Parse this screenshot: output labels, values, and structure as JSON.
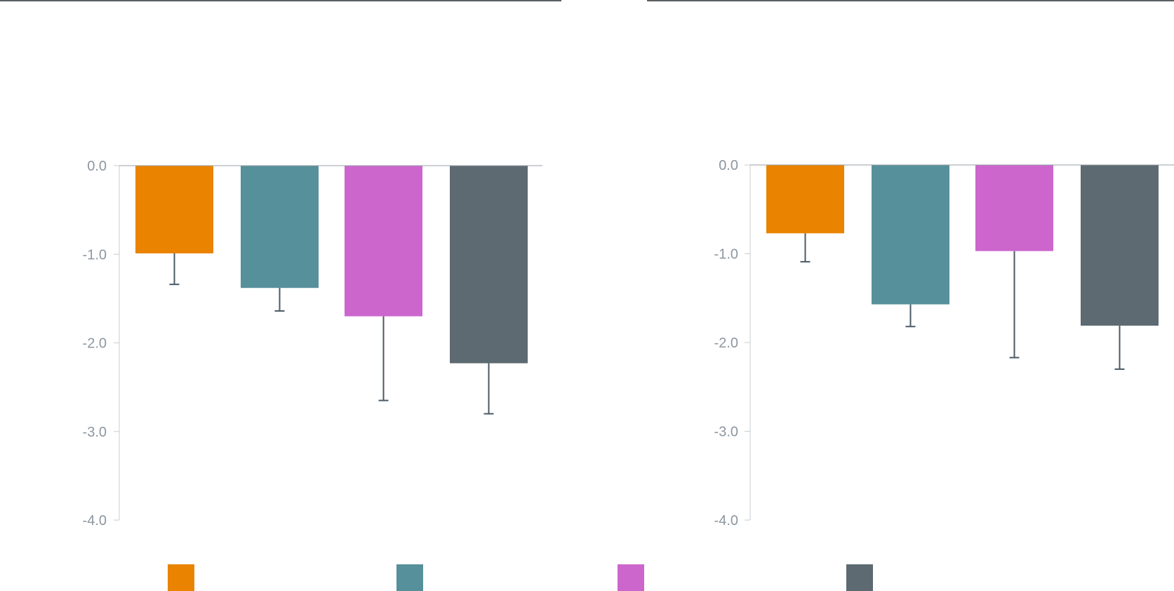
{
  "colors": {
    "orange": "#e98300",
    "teal": "#56909a",
    "magenta": "#cc66cc",
    "slate": "#5d6a72",
    "axis": "#c8ccd0",
    "tick_text": "#8c96a0",
    "error_bar": "#4a5a66",
    "top_rule": "#5a5f63"
  },
  "legend": {
    "swatches": [
      {
        "color": "#e98300"
      },
      {
        "color": "#56909a"
      },
      {
        "color": "#cc66cc"
      },
      {
        "color": "#5d6a72"
      }
    ]
  },
  "chart_data": [
    {
      "type": "bar",
      "ylim": [
        -4.0,
        0.0
      ],
      "yticks": [
        0.0,
        -1.0,
        -2.0,
        -3.0,
        -4.0
      ],
      "ytick_labels": [
        "0.0",
        "-1.0",
        "-2.0",
        "-3.0",
        "-4.0"
      ],
      "grid": false,
      "categories": [
        "",
        "",
        "",
        ""
      ],
      "values": [
        -0.99,
        -1.38,
        -1.7,
        -2.23
      ],
      "error_low": [
        -1.34,
        -1.64,
        -2.65,
        -2.8
      ],
      "colors": [
        "#e98300",
        "#56909a",
        "#cc66cc",
        "#5d6a72"
      ]
    },
    {
      "type": "bar",
      "ylim": [
        -4.0,
        0.0
      ],
      "yticks": [
        0.0,
        -1.0,
        -2.0,
        -3.0,
        -4.0
      ],
      "ytick_labels": [
        "0.0",
        "-1.0",
        "-2.0",
        "-3.0",
        "-4.0"
      ],
      "grid": false,
      "categories": [
        "",
        "",
        "",
        ""
      ],
      "values": [
        -0.77,
        -1.57,
        -0.97,
        -1.81
      ],
      "error_low": [
        -1.09,
        -1.82,
        -2.17,
        -2.3
      ],
      "colors": [
        "#e98300",
        "#56909a",
        "#cc66cc",
        "#5d6a72"
      ]
    }
  ]
}
